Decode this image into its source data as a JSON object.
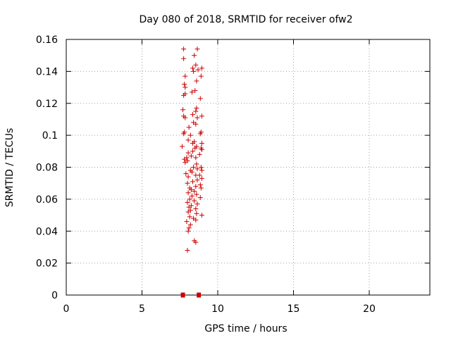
{
  "chart_data": {
    "type": "scatter",
    "title": "Day 080 of 2018, SRMTID for receiver ofw2",
    "xlabel": "GPS time / hours",
    "ylabel": "SRMTID / TECUs",
    "xlim": [
      0,
      24
    ],
    "ylim": [
      0,
      0.16
    ],
    "x_ticks": [
      "0",
      "5",
      "10",
      "15",
      "20"
    ],
    "y_ticks": [
      "0",
      "0.02",
      "0.04",
      "0.06",
      "0.08",
      "0.1",
      "0.12",
      "0.14",
      "0.16"
    ],
    "grid": true,
    "legend": "none",
    "marker_color": "#cc0000",
    "series": [
      {
        "marker": "plus",
        "points": [
          [
            7.75,
            0.154
          ],
          [
            8.65,
            0.154
          ],
          [
            8.45,
            0.15
          ],
          [
            7.75,
            0.148
          ],
          [
            8.55,
            0.144
          ],
          [
            8.35,
            0.142
          ],
          [
            8.7,
            0.141
          ],
          [
            8.95,
            0.142
          ],
          [
            8.4,
            0.14
          ],
          [
            7.85,
            0.137
          ],
          [
            8.9,
            0.137
          ],
          [
            8.6,
            0.134
          ],
          [
            7.8,
            0.132
          ],
          [
            7.85,
            0.13
          ],
          [
            8.5,
            0.128
          ],
          [
            8.3,
            0.127
          ],
          [
            7.85,
            0.126
          ],
          [
            7.75,
            0.125
          ],
          [
            8.85,
            0.123
          ],
          [
            8.6,
            0.117
          ],
          [
            7.7,
            0.116
          ],
          [
            8.55,
            0.115
          ],
          [
            8.35,
            0.113
          ],
          [
            8.95,
            0.112
          ],
          [
            7.75,
            0.112
          ],
          [
            7.85,
            0.111
          ],
          [
            8.65,
            0.111
          ],
          [
            8.4,
            0.108
          ],
          [
            8.55,
            0.107
          ],
          [
            8.1,
            0.105
          ],
          [
            7.8,
            0.102
          ],
          [
            7.75,
            0.101
          ],
          [
            8.9,
            0.102
          ],
          [
            8.85,
            0.101
          ],
          [
            8.2,
            0.1
          ],
          [
            8.05,
            0.097
          ],
          [
            8.45,
            0.096
          ],
          [
            8.35,
            0.095
          ],
          [
            8.95,
            0.095
          ],
          [
            7.65,
            0.093
          ],
          [
            8.6,
            0.093
          ],
          [
            8.5,
            0.092
          ],
          [
            8.9,
            0.092
          ],
          [
            8.95,
            0.091
          ],
          [
            8.35,
            0.09
          ],
          [
            8.05,
            0.089
          ],
          [
            8.8,
            0.088
          ],
          [
            8.25,
            0.087
          ],
          [
            8.55,
            0.086
          ],
          [
            7.95,
            0.086
          ],
          [
            7.8,
            0.085
          ],
          [
            8.0,
            0.084
          ],
          [
            7.85,
            0.083
          ],
          [
            8.6,
            0.082
          ],
          [
            8.4,
            0.08
          ],
          [
            8.9,
            0.08
          ],
          [
            8.65,
            0.079
          ],
          [
            8.95,
            0.078
          ],
          [
            8.2,
            0.078
          ],
          [
            8.3,
            0.077
          ],
          [
            7.9,
            0.076
          ],
          [
            8.55,
            0.075
          ],
          [
            8.8,
            0.075
          ],
          [
            8.05,
            0.074
          ],
          [
            8.95,
            0.073
          ],
          [
            8.65,
            0.072
          ],
          [
            8.35,
            0.071
          ],
          [
            8.0,
            0.07
          ],
          [
            8.85,
            0.069
          ],
          [
            8.55,
            0.068
          ],
          [
            8.15,
            0.067
          ],
          [
            8.9,
            0.067
          ],
          [
            8.25,
            0.066
          ],
          [
            8.45,
            0.065
          ],
          [
            8.05,
            0.064
          ],
          [
            8.6,
            0.063
          ],
          [
            8.3,
            0.062
          ],
          [
            8.85,
            0.061
          ],
          [
            8.15,
            0.06
          ],
          [
            8.45,
            0.059
          ],
          [
            8.0,
            0.058
          ],
          [
            8.65,
            0.057
          ],
          [
            8.25,
            0.056
          ],
          [
            8.1,
            0.055
          ],
          [
            8.55,
            0.054
          ],
          [
            8.2,
            0.053
          ],
          [
            8.05,
            0.052
          ],
          [
            8.6,
            0.051
          ],
          [
            8.95,
            0.05
          ],
          [
            8.15,
            0.049
          ],
          [
            8.4,
            0.048
          ],
          [
            8.55,
            0.047
          ],
          [
            7.95,
            0.046
          ],
          [
            8.2,
            0.044
          ],
          [
            8.1,
            0.042
          ],
          [
            8.05,
            0.04
          ],
          [
            8.45,
            0.034
          ],
          [
            8.55,
            0.033
          ],
          [
            8.0,
            0.028
          ]
        ]
      },
      {
        "marker": "square",
        "points": [
          [
            7.7,
            0.0
          ],
          [
            8.75,
            0.0
          ]
        ]
      }
    ]
  }
}
